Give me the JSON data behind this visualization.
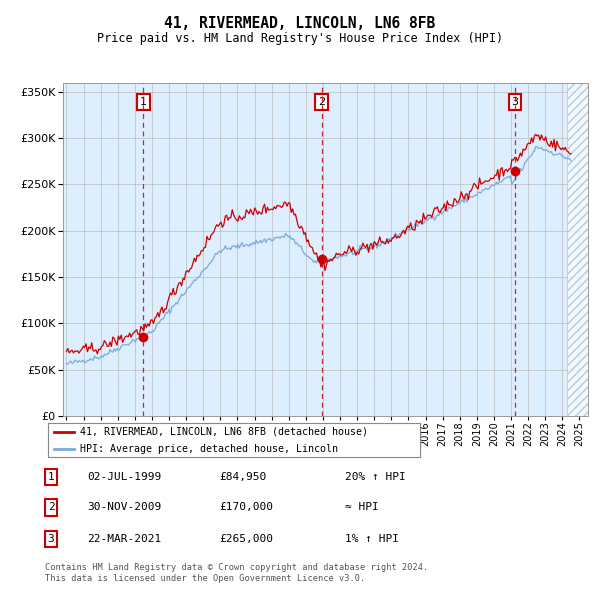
{
  "title": "41, RIVERMEAD, LINCOLN, LN6 8FB",
  "subtitle": "Price paid vs. HM Land Registry's House Price Index (HPI)",
  "legend_line1": "41, RIVERMEAD, LINCOLN, LN6 8FB (detached house)",
  "legend_line2": "HPI: Average price, detached house, Lincoln",
  "transactions": [
    {
      "num": 1,
      "date": "02-JUL-1999",
      "price": 84950,
      "label": "20% ↑ HPI",
      "year": 1999.5
    },
    {
      "num": 2,
      "date": "30-NOV-2009",
      "price": 170000,
      "label": "≈ HPI",
      "year": 2009.917
    },
    {
      "num": 3,
      "date": "22-MAR-2021",
      "price": 265000,
      "label": "1% ↑ HPI",
      "year": 2021.22
    }
  ],
  "footnote1": "Contains HM Land Registry data © Crown copyright and database right 2024.",
  "footnote2": "This data is licensed under the Open Government Licence v3.0.",
  "hpi_color": "#7aabdc",
  "property_color": "#cc0000",
  "background_color": "#ddeeff",
  "grid_color": "#bbbbbb",
  "vline_color": "#cc0000",
  "ylim": [
    0,
    360000
  ],
  "yticks": [
    0,
    50000,
    100000,
    150000,
    200000,
    250000,
    300000,
    350000
  ],
  "xlim_start": 1994.8,
  "xlim_end": 2025.5
}
